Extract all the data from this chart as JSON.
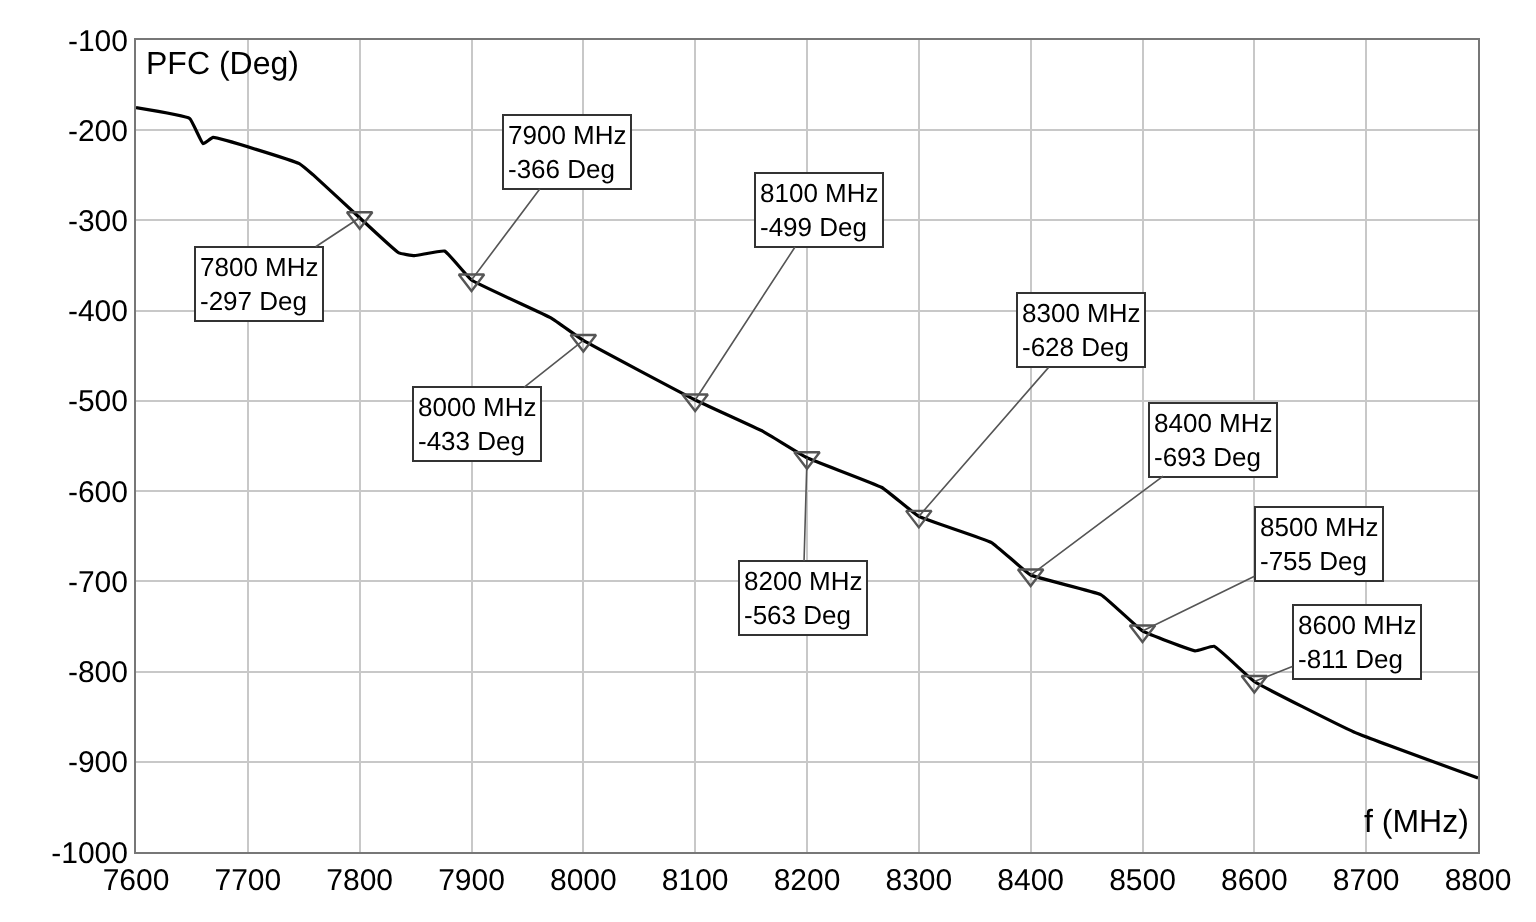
{
  "chart_data": {
    "type": "line",
    "xlabel": "f (MHz)",
    "ylabel": "PFC (Deg)",
    "x": [
      7600,
      7648,
      7660,
      7669,
      7746,
      7758,
      7800,
      7835,
      7849,
      7876,
      7900,
      7971,
      8000,
      8100,
      8161,
      8200,
      8267,
      8300,
      8365,
      8400,
      8463,
      8500,
      8547,
      8564,
      8600,
      8689,
      8800
    ],
    "series": [
      {
        "color": "#000000",
        "values": [
          -175,
          -187,
          -215,
          -208,
          -237,
          -249,
          -297,
          -336,
          -339,
          -334,
          -366,
          -408,
          -433,
          -499,
          -534,
          -563,
          -596,
          -628,
          -657,
          -693,
          -715,
          -755,
          -777,
          -772,
          -811,
          -867,
          -918
        ]
      },
      {
        "type": "scatter",
        "marker": "triangle",
        "color": "#555555",
        "x": [
          7800,
          7900,
          8000,
          8100,
          8200,
          8300,
          8400,
          8500,
          8600
        ],
        "values": [
          -297,
          -366,
          -433,
          -499,
          -563,
          -628,
          -693,
          -755,
          -811
        ]
      }
    ],
    "annotations": [
      {
        "text": "7800 MHz\n-297 Deg",
        "x": 7800,
        "y": -297
      },
      {
        "text": "7900 MHz\n-366 Deg",
        "x": 7900,
        "y": -366
      },
      {
        "text": "8000 MHz\n-433 Deg",
        "x": 8000,
        "y": -433
      },
      {
        "text": "8100 MHz\n-499 Deg",
        "x": 8100,
        "y": -499
      },
      {
        "text": "8200 MHz\n-563 Deg",
        "x": 8200,
        "y": -563
      },
      {
        "text": "8300 MHz\n-628 Deg",
        "x": 8300,
        "y": -628
      },
      {
        "text": "8400 MHz\n-693 Deg",
        "x": 8400,
        "y": -693
      },
      {
        "text": "8500 MHz\n-755 Deg",
        "x": 8500,
        "y": -755
      },
      {
        "text": "8600 MHz\n-811 Deg",
        "x": 8600,
        "y": -811
      }
    ],
    "xlim": [
      7600,
      8800
    ],
    "xticks": [
      7600,
      7700,
      7800,
      7900,
      8000,
      8100,
      8200,
      8300,
      8400,
      8500,
      8600,
      8700,
      8800
    ],
    "ylim": [
      -1000,
      -100
    ],
    "yticks": [
      -1000,
      -900,
      -800,
      -700,
      -600,
      -500,
      -400,
      -300,
      -200,
      -100
    ],
    "grid": true,
    "marker": "none",
    "line_style": "solid"
  }
}
